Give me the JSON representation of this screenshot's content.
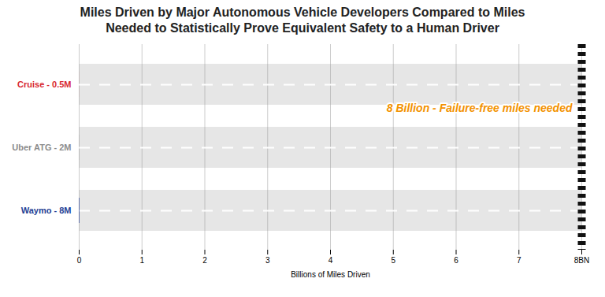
{
  "chart_data": {
    "type": "bar",
    "orientation": "horizontal",
    "title": "Miles Driven by Major Autonomous Vehicle Developers Compared to Miles Needed to Statistically Prove Equivalent Safety to a Human Driver",
    "xlabel": "Billions of Miles Driven",
    "categories": [
      "Cruise - 0.5M",
      "Uber ATG - 2M",
      "Waymo - 8M"
    ],
    "values": [
      0.0005,
      0.002,
      0.008
    ],
    "colors": [
      "#d8282f",
      "#8c8c8c",
      "#243f94"
    ],
    "xlim": [
      0,
      8
    ],
    "xticks": [
      0,
      1,
      2,
      3,
      4,
      5,
      6,
      7,
      {
        "value": 8,
        "label": "8BN"
      }
    ],
    "grid": true,
    "annotations": [
      {
        "text": "8 Billion - Failure-free miles needed",
        "x": 8,
        "color": "#f39200"
      }
    ]
  }
}
